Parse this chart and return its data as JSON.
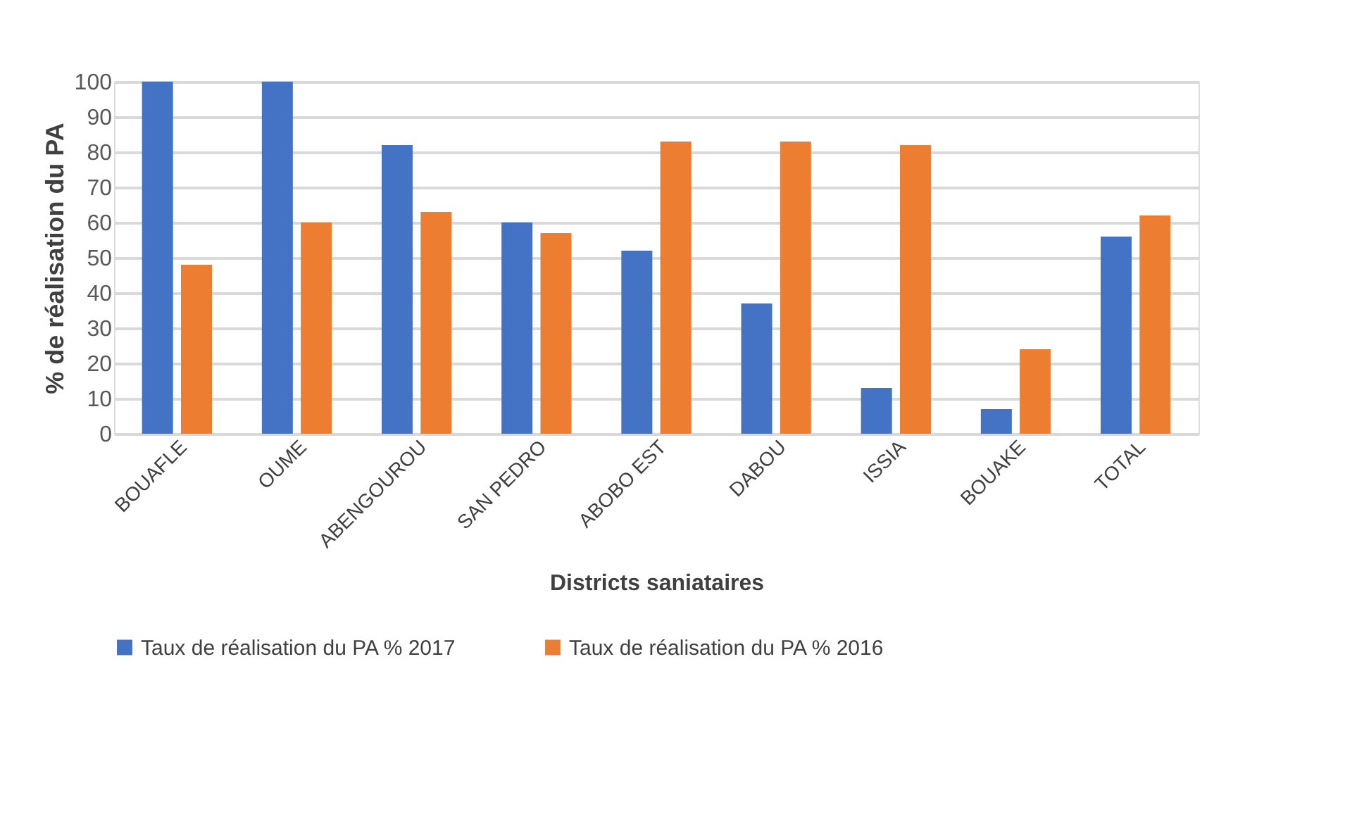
{
  "chart_data": {
    "type": "bar",
    "xlabel": "Districts saniataires",
    "ylabel": "% de réalisation du PA",
    "categories": [
      "BOUAFLE",
      "OUME",
      "ABENGOUROU",
      "SAN PEDRO",
      "ABOBO EST",
      "DABOU",
      "ISSIA",
      "BOUAKE",
      "TOTAL"
    ],
    "series": [
      {
        "name": "Taux de réalisation du PA % 2017",
        "color": "#4472c4",
        "values": [
          100,
          100,
          82,
          60,
          52,
          37,
          13,
          7,
          56
        ]
      },
      {
        "name": "Taux de réalisation du PA % 2016",
        "color": "#ed7d31",
        "values": [
          48,
          60,
          63,
          57,
          83,
          83,
          82,
          24,
          62
        ]
      }
    ],
    "ylim": [
      0,
      100
    ],
    "yticks": [
      0,
      10,
      20,
      30,
      40,
      50,
      60,
      70,
      80,
      90,
      100
    ],
    "grid": "y",
    "legend": "bottom"
  }
}
